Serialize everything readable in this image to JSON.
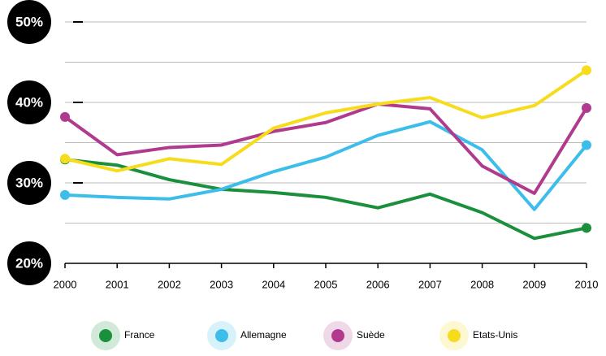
{
  "chart_data": {
    "type": "line",
    "x": [
      2000,
      2001,
      2002,
      2003,
      2004,
      2005,
      2006,
      2007,
      2008,
      2009,
      2010
    ],
    "xlim": [
      2000,
      2010
    ],
    "xticks": [
      2000,
      2001,
      2002,
      2003,
      2004,
      2005,
      2006,
      2007,
      2008,
      2009,
      2010
    ],
    "ylim": [
      20,
      50
    ],
    "yticks": [
      {
        "value": 20,
        "label": "20%"
      },
      {
        "value": 30,
        "label": "30%"
      },
      {
        "value": 40,
        "label": "40%"
      },
      {
        "value": 50,
        "label": "50%"
      }
    ],
    "grid": true,
    "legend": "bottom",
    "series": [
      {
        "name": "France",
        "color": "#1a8f3c",
        "values": [
          32.9,
          32.2,
          30.4,
          29.2,
          28.8,
          28.2,
          26.9,
          28.6,
          26.3,
          23.1,
          24.4
        ]
      },
      {
        "name": "Allemagne",
        "color": "#3dbde9",
        "values": [
          28.5,
          28.2,
          28.0,
          29.2,
          31.4,
          33.2,
          35.9,
          37.6,
          34.1,
          26.7,
          34.7
        ]
      },
      {
        "name": "Suède",
        "color": "#b03a8e",
        "values": [
          38.2,
          33.5,
          34.4,
          34.7,
          36.4,
          37.5,
          39.8,
          39.2,
          32.1,
          28.7,
          39.3
        ]
      },
      {
        "name": "Etats-Unis",
        "color": "#f7dc1e",
        "values": [
          33.0,
          31.5,
          33.0,
          32.3,
          36.8,
          38.7,
          39.8,
          40.6,
          38.1,
          39.6,
          44.0
        ]
      }
    ]
  }
}
